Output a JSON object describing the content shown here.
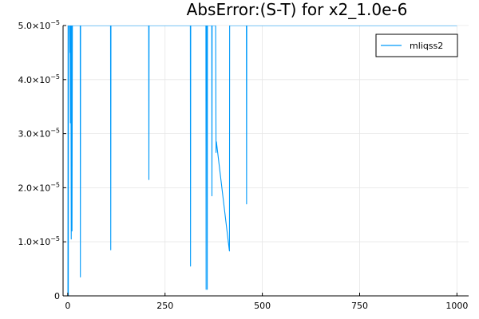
{
  "chart_data": {
    "type": "line",
    "title": "AbsError:(S-T) for x2_1.0e-6",
    "xlabel": "",
    "ylabel": "",
    "xlim": [
      -12,
      1030
    ],
    "ylim": [
      0,
      5e-05
    ],
    "grid": true,
    "legend_position": "top-right",
    "x_ticks": [
      {
        "value": 0,
        "label": "0"
      },
      {
        "value": 250,
        "label": "250"
      },
      {
        "value": 500,
        "label": "500"
      },
      {
        "value": 750,
        "label": "750"
      },
      {
        "value": 1000,
        "label": "1000"
      }
    ],
    "y_ticks": [
      {
        "value": 0,
        "mant": "0",
        "exp": ""
      },
      {
        "value": 1e-05,
        "mant": "1.0×10",
        "exp": "−5"
      },
      {
        "value": 2e-05,
        "mant": "2.0×10",
        "exp": "−5"
      },
      {
        "value": 3e-05,
        "mant": "3.0×10",
        "exp": "−5"
      },
      {
        "value": 4e-05,
        "mant": "4.0×10",
        "exp": "−5"
      },
      {
        "value": 5e-05,
        "mant": "5.0×10",
        "exp": "−5"
      }
    ],
    "series": [
      {
        "name": "mliqss2",
        "color": "#009AFA",
        "x": [
          0,
          0.5,
          1,
          1.5,
          2,
          3,
          4,
          5,
          5.5,
          6,
          7,
          8,
          9,
          10,
          11,
          12,
          13,
          32,
          32.5,
          33,
          110,
          110.5,
          111,
          112,
          208,
          208.5,
          209,
          315,
          315.5,
          316,
          355,
          355.5,
          356,
          358,
          358.5,
          359,
          370,
          370.5,
          371,
          380,
          381,
          382,
          415,
          415.5,
          416,
          459,
          459.5,
          460,
          1000
        ],
        "y": [
          0,
          0,
          5e-05,
          0,
          5e-05,
          5e-05,
          5e-05,
          5e-05,
          4.5e-05,
          5e-05,
          3.2e-05,
          5e-05,
          1.05e-05,
          5e-05,
          1.2e-05,
          5e-05,
          5e-05,
          5e-05,
          3.5e-06,
          5e-05,
          5e-05,
          8.5e-06,
          5e-05,
          5e-05,
          5e-05,
          2.15e-05,
          5e-05,
          5e-05,
          5.5e-06,
          5e-05,
          5e-05,
          1.2e-06,
          5e-05,
          5e-05,
          1.2e-06,
          5e-05,
          5e-05,
          1.85e-05,
          5e-05,
          5e-05,
          2.65e-05,
          2.85e-05,
          8.5e-06,
          8.3e-06,
          5e-05,
          5e-05,
          1.7e-05,
          5e-05,
          5e-05
        ]
      }
    ]
  }
}
